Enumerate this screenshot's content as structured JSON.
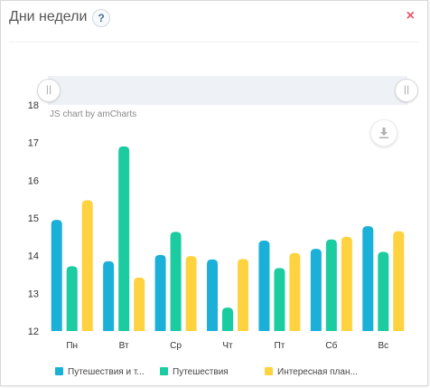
{
  "dialog": {
    "title": "Дни недели",
    "help_label": "?",
    "close_label": "×"
  },
  "chart_toolbar": {
    "credit": "JS chart by amCharts",
    "scroll_grip_left_label": "||",
    "scroll_grip_right_label": "||",
    "download_icon": "download-icon"
  },
  "colors": {
    "series1": "#1ab0d8",
    "series2": "#1bcca0",
    "series3": "#ffd23f"
  },
  "legend": {
    "items": [
      "Путешествия и т...",
      "Путешествия",
      "Интересная план..."
    ]
  },
  "chart_data": {
    "type": "bar",
    "categories": [
      "Пн",
      "Вт",
      "Ср",
      "Чт",
      "Пт",
      "Сб",
      "Вс"
    ],
    "ylim": [
      12,
      18
    ],
    "yticks": [
      12,
      13,
      14,
      15,
      16,
      17,
      18
    ],
    "series": [
      {
        "name": "Путешествия и т...",
        "values": [
          14.95,
          13.85,
          14.02,
          13.9,
          14.4,
          14.18,
          14.78
        ]
      },
      {
        "name": "Путешествия",
        "values": [
          13.72,
          16.9,
          14.63,
          12.62,
          13.67,
          14.43,
          14.1
        ]
      },
      {
        "name": "Интересная план...",
        "values": [
          15.47,
          13.42,
          13.99,
          13.91,
          14.07,
          14.5,
          14.65
        ]
      }
    ],
    "grid": false,
    "legend_position": "bottom"
  }
}
